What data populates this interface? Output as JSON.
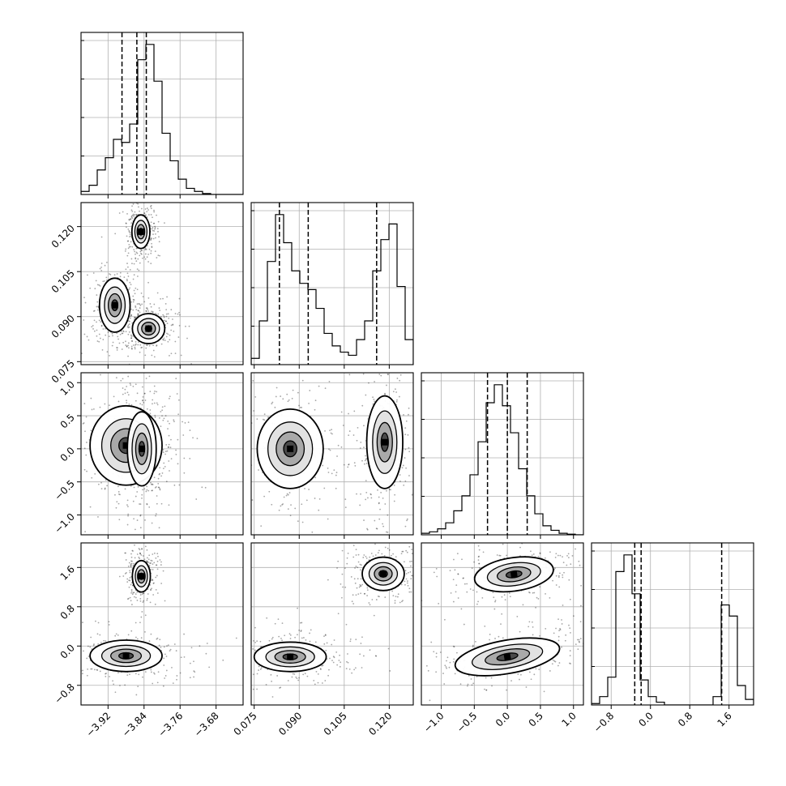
{
  "chart_data": {
    "type": "corner",
    "grid": true,
    "parameters": [
      {
        "key": "p1",
        "range": [
          -3.98,
          -3.62
        ],
        "ticks": [
          -3.92,
          -3.84,
          -3.76,
          -3.68
        ],
        "tick_labels": [
          "−3.92",
          "−3.84",
          "−3.76",
          "−3.68"
        ],
        "quantiles": [
          -3.889,
          -3.856,
          -3.835
        ]
      },
      {
        "key": "p2",
        "range": [
          0.074,
          0.128
        ],
        "ticks": [
          0.075,
          0.09,
          0.105,
          0.12
        ],
        "tick_labels": [
          "0.075",
          "0.090",
          "0.105",
          "0.120"
        ],
        "quantiles": [
          0.0834,
          0.093,
          0.1158
        ]
      },
      {
        "key": "p3",
        "range": [
          -1.3,
          1.15
        ],
        "ticks": [
          -1.0,
          -0.5,
          0.0,
          0.5,
          1.0
        ],
        "tick_labels": [
          "−1.0",
          "−0.5",
          "0.0",
          "0.5",
          "1.0"
        ],
        "quantiles": [
          -0.3,
          0.0,
          0.3
        ]
      },
      {
        "key": "p4",
        "range": [
          -1.2,
          2.1
        ],
        "ticks": [
          -0.8,
          0.0,
          0.8,
          1.6
        ],
        "tick_labels": [
          "−0.8",
          "0.0",
          "0.8",
          "1.6"
        ],
        "quantiles": [
          -0.32,
          -0.19,
          1.45
        ]
      }
    ],
    "diagonal_histograms": [
      {
        "param": "p1",
        "bins": 20,
        "range": [
          -3.98,
          -3.62
        ],
        "counts": [
          1,
          3,
          8,
          12,
          18,
          17,
          23,
          44,
          49,
          37,
          20,
          11,
          5,
          2,
          1,
          0.3,
          0,
          0,
          0,
          0
        ]
      },
      {
        "param": "p2",
        "bins": 20,
        "range": [
          0.074,
          0.128
        ],
        "counts": [
          2,
          14,
          33,
          48,
          39,
          30,
          26,
          24,
          18,
          10,
          6,
          4,
          3,
          8,
          14,
          30,
          40,
          45,
          25,
          8
        ]
      },
      {
        "param": "p3",
        "bins": 20,
        "range": [
          -1.3,
          1.15
        ],
        "counts": [
          0.5,
          1,
          2,
          4,
          8,
          13,
          20,
          31,
          44,
          50,
          43,
          34,
          22,
          13,
          7,
          3,
          1.5,
          0.5,
          0.2,
          0
        ]
      },
      {
        "param": "p4",
        "bins": 20,
        "range": [
          -1.2,
          2.1
        ],
        "counts": [
          0.5,
          3,
          10,
          48,
          54,
          40,
          9,
          3,
          1,
          0,
          0,
          0,
          0,
          0,
          0,
          3,
          36,
          32,
          7,
          2
        ]
      }
    ],
    "density_clusters": [
      {
        "x": "p1",
        "y": "p2",
        "center": [
          -3.847,
          0.1183
        ],
        "sd": [
          0.01,
          0.0028
        ],
        "angle_deg": 0
      },
      {
        "x": "p1",
        "y": "p2",
        "center": [
          -3.905,
          0.0938
        ],
        "sd": [
          0.017,
          0.0045
        ],
        "angle_deg": 0
      },
      {
        "x": "p1",
        "y": "p2",
        "center": [
          -3.83,
          0.086
        ],
        "sd": [
          0.018,
          0.0025
        ],
        "angle_deg": 0
      },
      {
        "x": "p1",
        "y": "p3",
        "center": [
          -3.88,
          0.05
        ],
        "sd": [
          0.04,
          0.3
        ],
        "angle_deg": 0
      },
      {
        "x": "p1",
        "y": "p3",
        "center": [
          -3.845,
          0.0
        ],
        "sd": [
          0.016,
          0.28
        ],
        "angle_deg": 0
      },
      {
        "x": "p2",
        "y": "p3",
        "center": [
          0.087,
          0.0
        ],
        "sd": [
          0.0055,
          0.3
        ],
        "angle_deg": 0
      },
      {
        "x": "p2",
        "y": "p3",
        "center": [
          0.1185,
          0.1
        ],
        "sd": [
          0.003,
          0.35
        ],
        "angle_deg": 0
      },
      {
        "x": "p1",
        "y": "p4",
        "center": [
          -3.846,
          1.42
        ],
        "sd": [
          0.01,
          0.16
        ],
        "angle_deg": 0
      },
      {
        "x": "p1",
        "y": "p4",
        "center": [
          -3.88,
          -0.2
        ],
        "sd": [
          0.04,
          0.16
        ],
        "angle_deg": 0
      },
      {
        "x": "p2",
        "y": "p4",
        "center": [
          0.118,
          1.47
        ],
        "sd": [
          0.0035,
          0.17
        ],
        "angle_deg": 0
      },
      {
        "x": "p2",
        "y": "p4",
        "center": [
          0.087,
          -0.22
        ],
        "sd": [
          0.006,
          0.15
        ],
        "angle_deg": 0
      },
      {
        "x": "p3",
        "y": "p4",
        "center": [
          0.1,
          1.46
        ],
        "sd": [
          0.3,
          0.17
        ],
        "angle_deg": -8
      },
      {
        "x": "p3",
        "y": "p4",
        "center": [
          0.0,
          -0.22
        ],
        "sd": [
          0.4,
          0.17
        ],
        "angle_deg": -10
      }
    ]
  }
}
